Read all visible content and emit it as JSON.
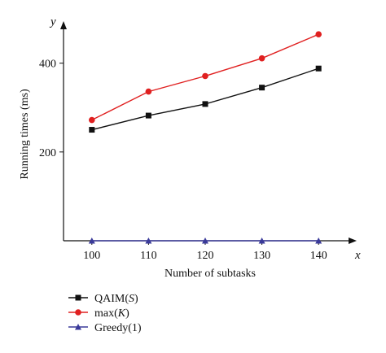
{
  "chart_data": {
    "type": "line",
    "xlabel": "Number of subtasks",
    "ylabel": "Running times (ms)",
    "x_axis_letter": "x",
    "y_axis_letter": "y",
    "x": [
      100,
      110,
      120,
      130,
      140
    ],
    "xlim": [
      95,
      145
    ],
    "ylim": [
      0,
      480
    ],
    "yticks": [
      200,
      400
    ],
    "grid": false,
    "legend_position": "bottom-left",
    "series": [
      {
        "name": "QAIM(S)",
        "name_prefix": "QAIM(",
        "name_italic": "S",
        "name_suffix": ")",
        "color": "#111111",
        "marker": "square",
        "values": [
          250,
          282,
          308,
          345,
          388
        ]
      },
      {
        "name": "max(K)",
        "name_prefix": "max(",
        "name_italic": "K",
        "name_suffix": ")",
        "color": "#e02020",
        "marker": "circle",
        "values": [
          272,
          336,
          371,
          411,
          465
        ]
      },
      {
        "name": "Greedy(1)",
        "name_prefix": "Greedy(1)",
        "name_italic": "",
        "name_suffix": "",
        "color": "#3a3a9a",
        "marker": "triangle",
        "values": [
          0,
          0,
          0,
          0,
          0
        ]
      }
    ]
  }
}
